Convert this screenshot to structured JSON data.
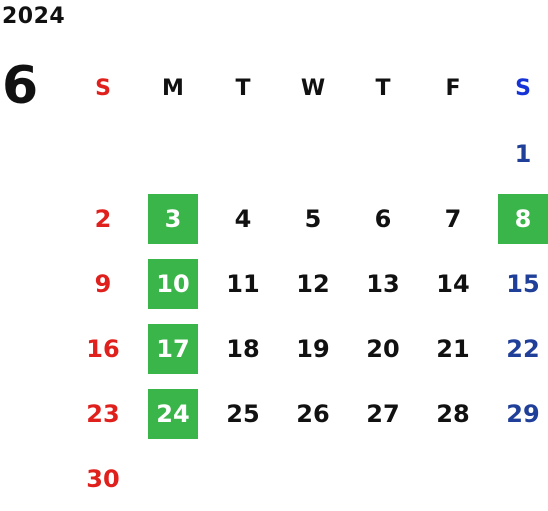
{
  "calendar": {
    "year": "2024",
    "month": "6",
    "weekdays": [
      "S",
      "M",
      "T",
      "W",
      "T",
      "F",
      "S"
    ],
    "weeks": [
      [
        "",
        "",
        "",
        "",
        "",
        "",
        "1"
      ],
      [
        "2",
        "3",
        "4",
        "5",
        "6",
        "7",
        "8"
      ],
      [
        "9",
        "10",
        "11",
        "12",
        "13",
        "14",
        "15"
      ],
      [
        "16",
        "17",
        "18",
        "19",
        "20",
        "21",
        "22"
      ],
      [
        "23",
        "24",
        "25",
        "26",
        "27",
        "28",
        "29"
      ],
      [
        "30",
        "",
        "",
        "",
        "",
        "",
        ""
      ]
    ],
    "highlighted_days": [
      "3",
      "8",
      "10",
      "17",
      "24"
    ],
    "colors": {
      "sunday": "#e0201c",
      "saturday_header": "#1533d6",
      "saturday": "#1f3f99",
      "weekday": "#111111",
      "highlight_bg": "#3ab54a",
      "highlight_text": "#ffffff"
    }
  }
}
